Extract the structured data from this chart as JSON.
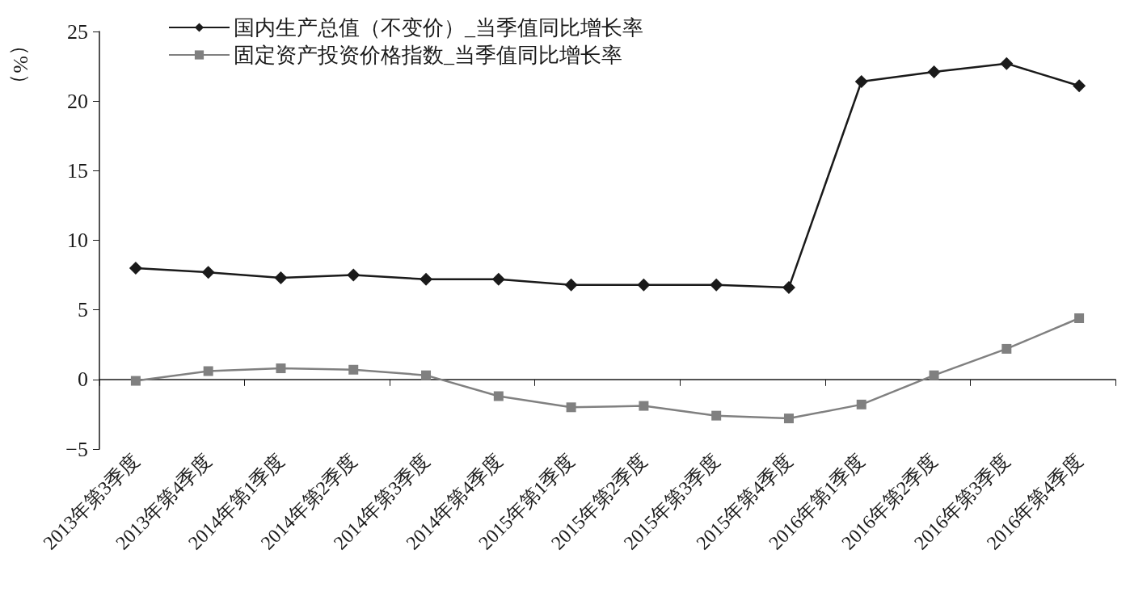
{
  "chart_data": {
    "type": "line",
    "ylabel": "（%）",
    "categories": [
      "2013年第3季度",
      "2013年第4季度",
      "2014年第1季度",
      "2014年第2季度",
      "2014年第3季度",
      "2014年第4季度",
      "2015年第1季度",
      "2015年第2季度",
      "2015年第3季度",
      "2015年第4季度",
      "2016年第1季度",
      "2016年第2季度",
      "2016年第3季度",
      "2016年第4季度"
    ],
    "series": [
      {
        "name": "国内生产总值（不变价）_当季值同比增长率",
        "color": "#1a1a1a",
        "marker": "diamond",
        "values": [
          8.0,
          7.7,
          7.3,
          7.5,
          7.2,
          7.2,
          6.8,
          6.8,
          6.8,
          6.6,
          21.4,
          22.1,
          22.7,
          21.1
        ]
      },
      {
        "name": "固定资产投资价格指数_当季值同比增长率",
        "color": "#808080",
        "marker": "square",
        "values": [
          -0.1,
          0.6,
          0.8,
          0.7,
          0.3,
          -1.2,
          -2.0,
          -1.9,
          -2.6,
          -2.8,
          -1.8,
          0.3,
          2.2,
          4.4
        ]
      }
    ],
    "ylim": [
      -5,
      25
    ],
    "yticks": [
      -5,
      0,
      5,
      10,
      15,
      20,
      25
    ],
    "legend": "top",
    "line_style": "solid"
  }
}
